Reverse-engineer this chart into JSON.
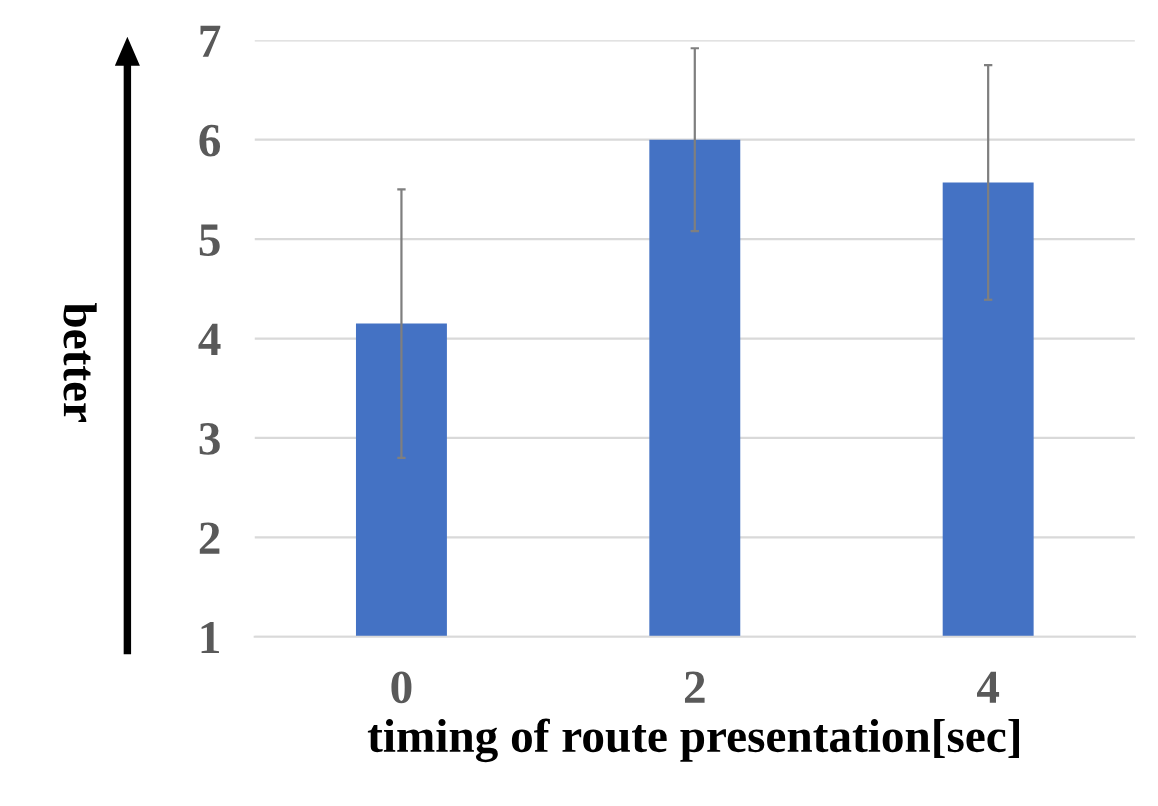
{
  "chart_data": {
    "type": "bar",
    "xlabel": "timing of route presentation[sec]",
    "ylabel": "better",
    "categories": [
      "0",
      "2",
      "4"
    ],
    "values": [
      4.15,
      6.0,
      5.57
    ],
    "errors": [
      1.35,
      0.92,
      1.18
    ],
    "color": "#4472c4",
    "ylim": [
      1,
      7
    ],
    "yticks": [
      1,
      2,
      3,
      4,
      5,
      6,
      7
    ],
    "grid": "y",
    "legend": false
  }
}
